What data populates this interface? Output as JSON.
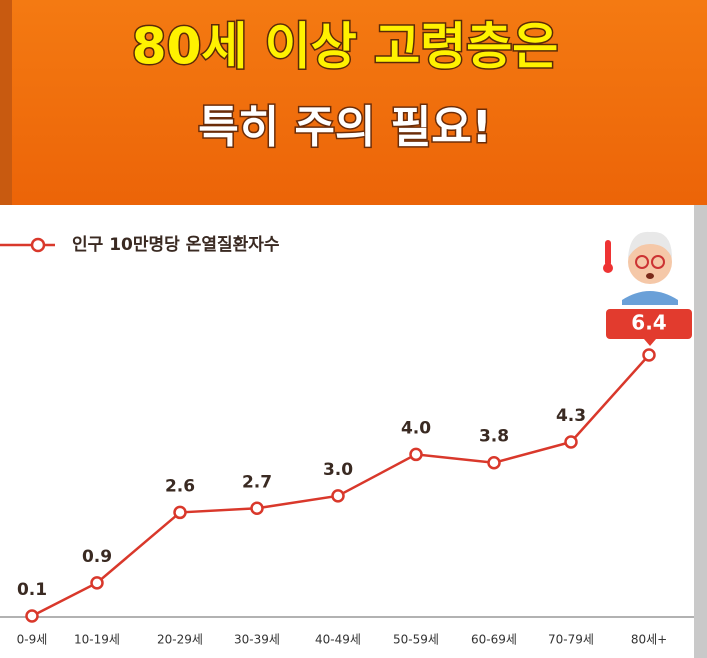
{
  "chart_data": {
    "type": "line",
    "title": "80세 이상 고령층은",
    "subtitle": "특히 주의 필요!",
    "categories": [
      "0-9세",
      "10-19세",
      "20-29세",
      "30-39세",
      "40-49세",
      "50-59세",
      "60-69세",
      "70-79세",
      "80세+"
    ],
    "series": [
      {
        "name": "인구 10만명당 온열질환자수",
        "color": "#d9382b",
        "values": [
          0.1,
          0.9,
          2.6,
          2.7,
          3.0,
          4.0,
          3.8,
          4.3,
          6.4
        ],
        "value_labels": [
          "0.1",
          "0.9",
          "2.6",
          "2.7",
          "3.0",
          "4.0",
          "3.8",
          "4.3",
          "6.4"
        ]
      }
    ]
  }
}
